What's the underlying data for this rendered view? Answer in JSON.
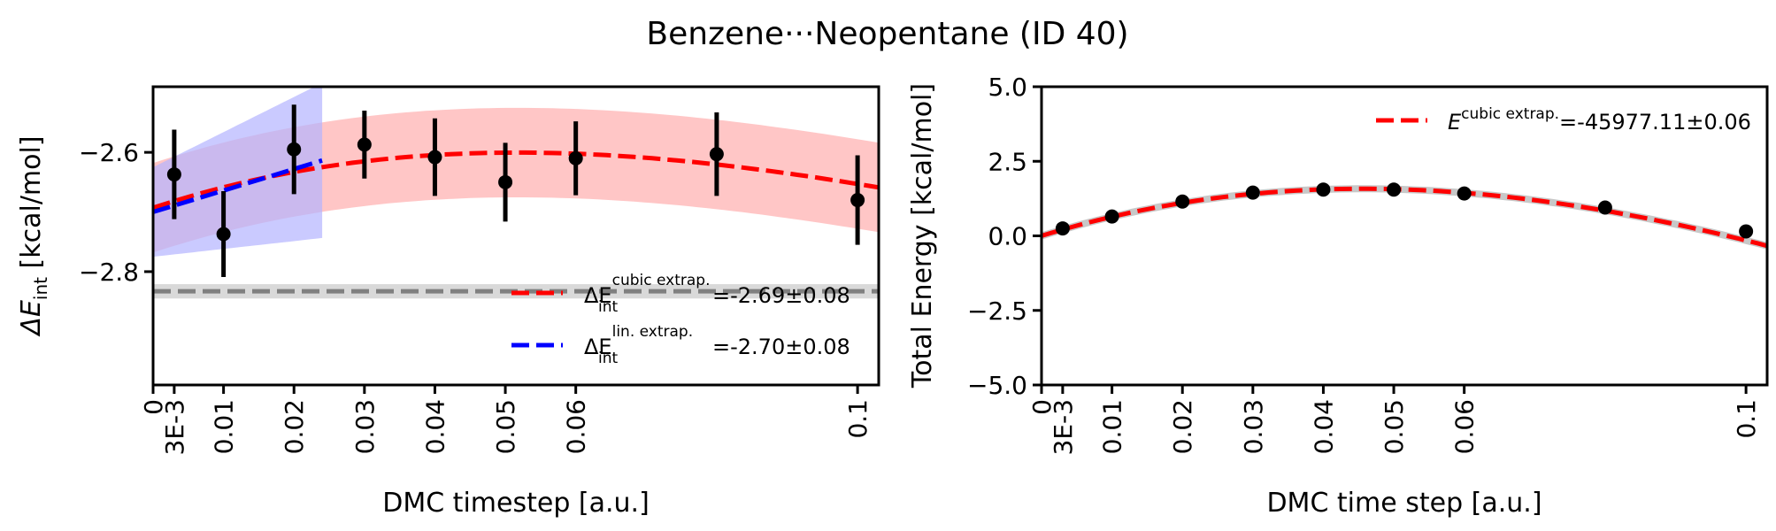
{
  "figure_title": "Benzene···Neopentane (ID 40)",
  "colors": {
    "cubic": "#ff0000",
    "linear": "#0000ff",
    "reference": "#808080",
    "points": "#000000",
    "cubic_band": "#ffb3b3",
    "linear_band": "#b3b3ff"
  },
  "chart_data": [
    {
      "type": "scatter",
      "title": "",
      "xlabel": "DMC timestep [a.u.]",
      "ylabel": "ΔE_int [kcal/mol]",
      "ylabel_main": "ΔE",
      "ylabel_sub": "int",
      "ylabel_unit": " [kcal/mol]",
      "xlim": [
        0,
        0.103
      ],
      "ylim": [
        -2.99,
        -2.49
      ],
      "x_ticks": [
        0,
        0.003,
        0.01,
        0.02,
        0.03,
        0.04,
        0.05,
        0.06,
        0.1
      ],
      "x_tick_labels": [
        "0",
        "3E-3",
        "0.01",
        "0.02",
        "0.03",
        "0.04",
        "0.05",
        "0.06",
        "0.1"
      ],
      "y_ticks": [
        -2.8,
        -2.6
      ],
      "y_tick_labels": [
        "−2.8",
        "−2.6"
      ],
      "grid": false,
      "legend_position": "lower-right",
      "points": {
        "x": [
          0.003,
          0.01,
          0.02,
          0.03,
          0.04,
          0.05,
          0.06,
          0.08,
          0.1
        ],
        "y": [
          -2.637,
          -2.737,
          -2.595,
          -2.587,
          -2.608,
          -2.65,
          -2.61,
          -2.603,
          -2.68
        ],
        "err": [
          0.075,
          0.072,
          0.075,
          0.057,
          0.065,
          0.066,
          0.062,
          0.07,
          0.075
        ]
      },
      "reference": {
        "value": -2.833,
        "band": 0.012
      },
      "cubic_fit": {
        "coefficients": [
          -2.693,
          3.9,
          -47.0,
          120.0
        ],
        "band": 0.075,
        "x_range": [
          0,
          0.103
        ]
      },
      "linear_fit": {
        "coefficients": [
          -2.7,
          3.6
        ],
        "band_at_zero": 0.075,
        "band_at_end": 0.13,
        "x_range": [
          0,
          0.024
        ]
      },
      "series": [
        {
          "name": "cubic",
          "label_main": "ΔE",
          "label_sub": "int",
          "label_sup": "cubic extrap.",
          "label_value": "=-2.69±0.08"
        },
        {
          "name": "linear",
          "label_main": "ΔE",
          "label_sub": "int",
          "label_sup": "lin. extrap.",
          "label_value": "=-2.70±0.08"
        }
      ]
    },
    {
      "type": "scatter",
      "title": "",
      "xlabel": "DMC time step [a.u.]",
      "ylabel": "Total Energy [kcal/mol]",
      "xlim": [
        0,
        0.103
      ],
      "ylim": [
        -5.0,
        5.0
      ],
      "x_ticks": [
        0,
        0.003,
        0.01,
        0.02,
        0.03,
        0.04,
        0.05,
        0.06,
        0.1
      ],
      "x_tick_labels": [
        "0",
        "3E-3",
        "0.01",
        "0.02",
        "0.03",
        "0.04",
        "0.05",
        "0.06",
        "0.1"
      ],
      "y_ticks": [
        -5.0,
        -2.5,
        0.0,
        2.5,
        5.0
      ],
      "y_tick_labels": [
        "−5.0",
        "−2.5",
        "0.0",
        "2.5",
        "5.0"
      ],
      "grid": false,
      "legend_position": "upper-right",
      "points": {
        "x": [
          0.003,
          0.01,
          0.02,
          0.03,
          0.04,
          0.05,
          0.06,
          0.08,
          0.1
        ],
        "y": [
          0.25,
          0.65,
          1.15,
          1.45,
          1.55,
          1.55,
          1.42,
          0.95,
          0.15
        ]
      },
      "cubic_fit": {
        "coefficients": [
          0.0,
          73.0,
          -922.0,
          1765.0
        ],
        "x_range": [
          0,
          0.103
        ]
      },
      "series": [
        {
          "name": "cubic",
          "label_main": "E",
          "label_sup": "cubic extrap.",
          "label_value": "=-45977.11±0.06"
        }
      ]
    }
  ]
}
